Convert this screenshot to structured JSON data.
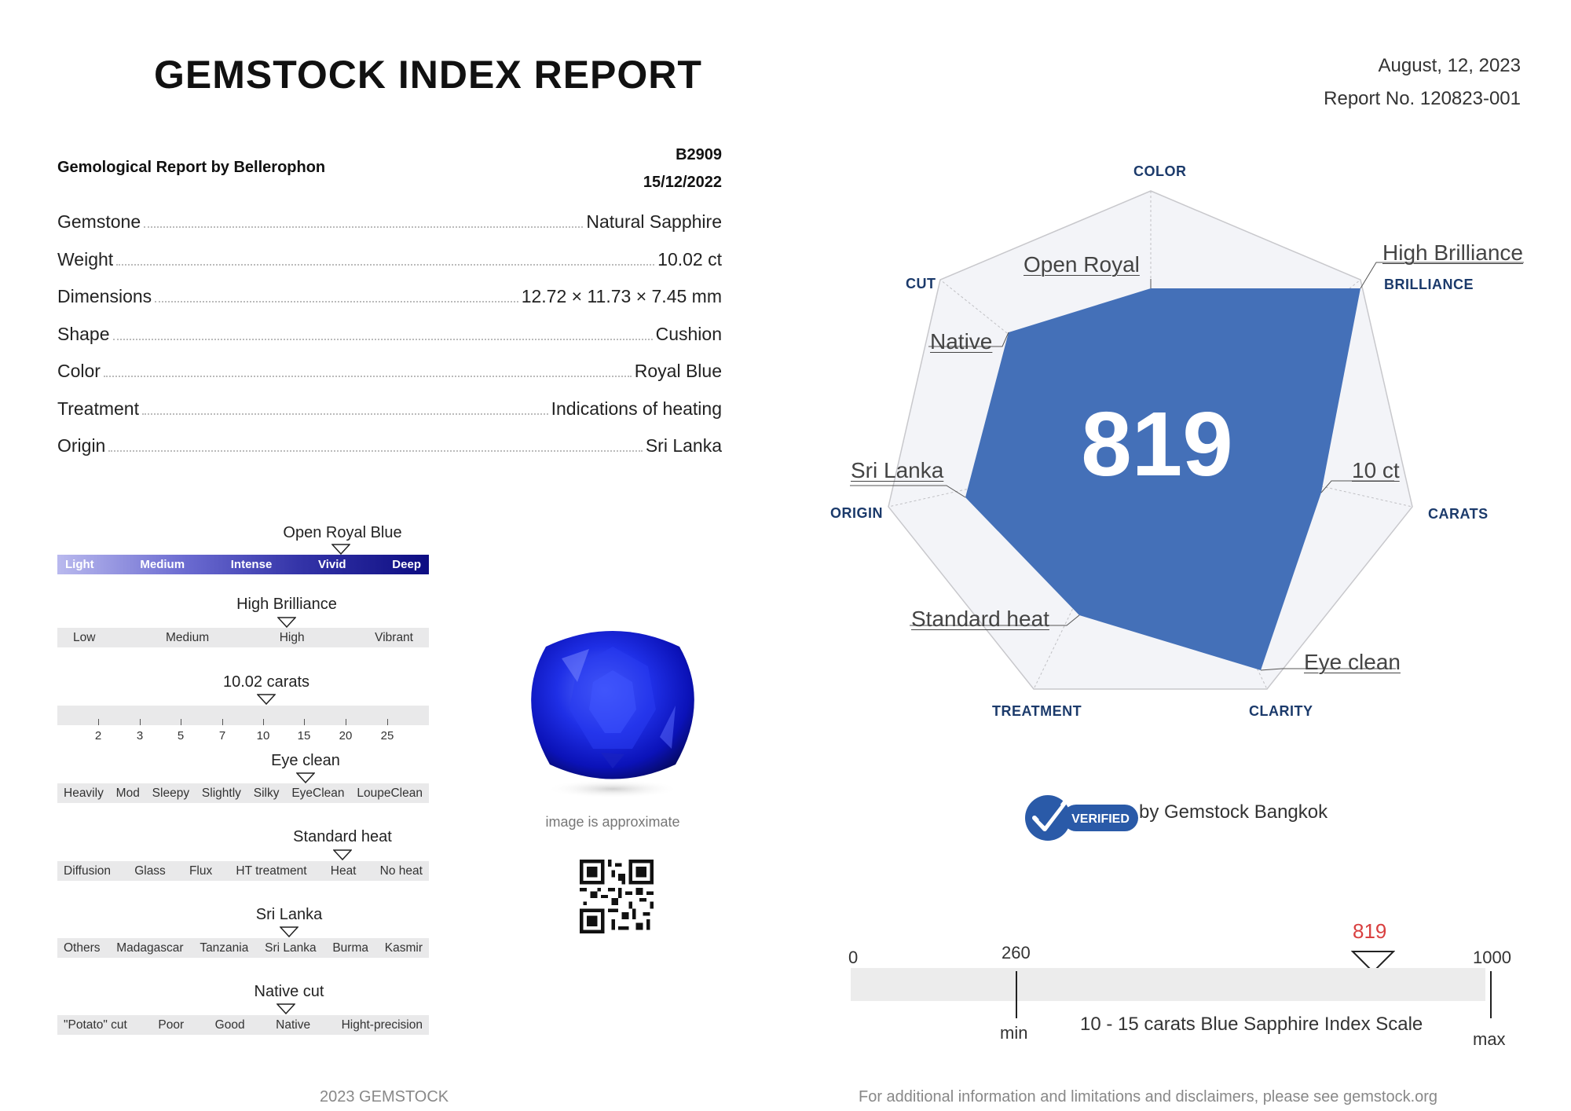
{
  "header": {
    "title": "GEMSTOCK INDEX REPORT",
    "date": "August, 12, 2023",
    "report_no": "Report No. 120823-001"
  },
  "lab": {
    "title": "Gemological Report by Bellerophon",
    "id": "B2909",
    "date": "15/12/2022"
  },
  "specs": [
    {
      "key": "Gemstone",
      "value": "Natural Sapphire"
    },
    {
      "key": "Weight",
      "value": "10.02 ct"
    },
    {
      "key": "Dimensions",
      "value": "12.72 × 11.73 × 7.45 mm"
    },
    {
      "key": "Shape",
      "value": "Cushion"
    },
    {
      "key": "Color",
      "value": "Royal Blue"
    },
    {
      "key": "Treatment",
      "value": "Indications of heating"
    },
    {
      "key": "Origin",
      "value": "Sri Lanka"
    }
  ],
  "scales": {
    "color": {
      "marker": "Open Royal Blue",
      "steps": [
        "Light",
        "Medium",
        "Intense",
        "Vivid",
        "Deep"
      ]
    },
    "brilliance": {
      "marker": "High Brilliance",
      "steps": [
        "Low",
        "Medium",
        "High",
        "Vibrant"
      ]
    },
    "carats": {
      "marker": "10.02 carats",
      "ticks": [
        "2",
        "3",
        "5",
        "7",
        "10",
        "15",
        "20",
        "25"
      ]
    },
    "clarity": {
      "marker": "Eye clean",
      "steps": [
        "Heavily",
        "Mod",
        "Sleepy",
        "Slightly",
        "Silky",
        "EyeClean",
        "LoupeClean"
      ]
    },
    "treatment": {
      "marker": "Standard heat",
      "steps": [
        "Diffusion",
        "Glass",
        "Flux",
        "HT treatment",
        "Heat",
        "No heat"
      ]
    },
    "origin": {
      "marker": "Sri Lanka",
      "steps": [
        "Others",
        "Madagascar",
        "Tanzania",
        "Sri Lanka",
        "Burma",
        "Kasmir"
      ]
    },
    "cut": {
      "marker": "Native cut",
      "steps": [
        "\"Potato\" cut",
        "Poor",
        "Good",
        "Native",
        "Hight-precision"
      ]
    }
  },
  "gem_caption": "image is approximate",
  "radar": {
    "score": "819",
    "axes": [
      "COLOR",
      "BRILLIANCE",
      "CARATS",
      "CLARITY",
      "TREATMENT",
      "ORIGIN",
      "CUT"
    ],
    "values": [
      "Open Royal",
      "High Brilliance",
      "10 ct",
      "Eye clean",
      "Standard heat",
      "Sri Lanka",
      "Native"
    ],
    "fill_color": "#4470b8"
  },
  "verified": {
    "badge": "VERIFIED",
    "text": "by Gemstock Bangkok"
  },
  "index_scale": {
    "min_value": "0",
    "low_value": "260",
    "score": "819",
    "max_value": "1000",
    "min_label": "min",
    "max_label": "max",
    "caption": "10 - 15 carats Blue Sapphire Index Scale"
  },
  "footer": {
    "left": "2023 GEMSTOCK",
    "right": "For additional information and limitations and disclaimers, please see gemstock.org"
  }
}
